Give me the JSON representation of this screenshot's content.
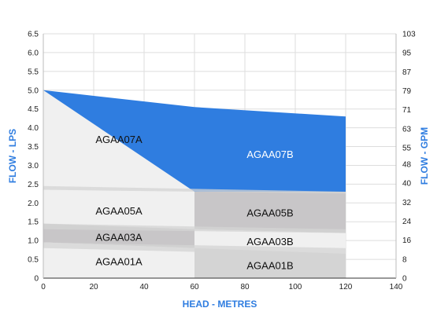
{
  "chart_data": {
    "type": "area",
    "xlabel": "HEAD - METRES",
    "ylabel": "FLOW - LPS",
    "y2label": "FLOW - GPM",
    "xlim": [
      0,
      140
    ],
    "ylim": [
      0,
      6.5
    ],
    "y2lim": [
      0,
      103
    ],
    "x_ticks": [
      0,
      20,
      40,
      60,
      80,
      100,
      120,
      140
    ],
    "y_ticks": [
      0,
      0.5,
      1.0,
      1.5,
      2.0,
      2.5,
      3.0,
      3.5,
      4.0,
      4.5,
      5.0,
      5.5,
      6.0,
      6.5
    ],
    "y_tick_labels": [
      "0",
      "0.5",
      "1.0",
      "1.5",
      "2.0",
      "2.5",
      "3.0",
      "3.5",
      "4.0",
      "4.5",
      "5.0",
      "5.5",
      "6.0",
      "6.5"
    ],
    "y2_ticks": [
      0,
      8,
      16,
      24,
      32,
      40,
      48,
      55,
      63,
      71,
      79,
      87,
      95,
      103
    ],
    "grid": true,
    "colors": {
      "highlight": "#2f7de0",
      "light_fill": "#f0f0f0",
      "mid_fill": "#d4d4d4",
      "dark_fill": "#c8c6c8",
      "grid": "#dddddd",
      "axis_title": "#2f7de0"
    },
    "series": [
      {
        "name": "AGAA07A",
        "x": [
          0,
          60
        ],
        "lower": [
          2.45,
          2.3
        ],
        "upper": [
          5.0,
          4.4
        ],
        "style": "light"
      },
      {
        "name": "AGAA07B",
        "x": [
          60,
          120
        ],
        "lower": [
          2.3,
          2.3
        ],
        "upper": [
          4.55,
          4.3
        ],
        "style": "highlight",
        "wedge_from_x": 0,
        "wedge_from_y": 5.0
      },
      {
        "name": "AGAA05A",
        "x": [
          0,
          60
        ],
        "lower": [
          1.45,
          1.3
        ],
        "upper": [
          2.45,
          2.3
        ],
        "style": "light"
      },
      {
        "name": "AGAA05B",
        "x": [
          60,
          120
        ],
        "lower": [
          1.3,
          1.2
        ],
        "upper": [
          2.3,
          2.3
        ],
        "style": "dark"
      },
      {
        "name": "AGAA03A",
        "x": [
          0,
          60
        ],
        "lower": [
          0.95,
          0.8
        ],
        "upper": [
          1.45,
          1.3
        ],
        "style": "dark"
      },
      {
        "name": "AGAA03B",
        "x": [
          60,
          120
        ],
        "lower": [
          0.8,
          0.65
        ],
        "upper": [
          1.3,
          1.2
        ],
        "style": "light"
      },
      {
        "name": "AGAA01A",
        "x": [
          0,
          60
        ],
        "lower": [
          0,
          0
        ],
        "upper": [
          0.95,
          0.8
        ],
        "style": "light"
      },
      {
        "name": "AGAA01B",
        "x": [
          60,
          120
        ],
        "lower": [
          0,
          0
        ],
        "upper": [
          0.8,
          0.65
        ],
        "style": "mid"
      }
    ],
    "band_overlay": [
      {
        "x": [
          0,
          120
        ],
        "lower": [
          2.35,
          2.25
        ],
        "upper": [
          2.45,
          2.3
        ],
        "style": "mid"
      },
      {
        "x": [
          0,
          120
        ],
        "lower": [
          1.3,
          1.2
        ],
        "upper": [
          1.45,
          1.3
        ],
        "style": "mid"
      },
      {
        "x": [
          0,
          120
        ],
        "lower": [
          0.8,
          0.6
        ],
        "upper": [
          0.95,
          0.8
        ],
        "style": "mid"
      }
    ],
    "labels": [
      {
        "text": "AGAA07A",
        "x": 30,
        "y": 3.7,
        "style": "dark"
      },
      {
        "text": "AGAA07B",
        "x": 90,
        "y": 3.3,
        "style": "light"
      },
      {
        "text": "AGAA05A",
        "x": 30,
        "y": 1.8,
        "style": "dark"
      },
      {
        "text": "AGAA05B",
        "x": 90,
        "y": 1.75,
        "style": "dark"
      },
      {
        "text": "AGAA03A",
        "x": 30,
        "y": 1.1,
        "style": "dark"
      },
      {
        "text": "AGAA03B",
        "x": 90,
        "y": 0.98,
        "style": "dark"
      },
      {
        "text": "AGAA01A",
        "x": 30,
        "y": 0.45,
        "style": "dark"
      },
      {
        "text": "AGAA01B",
        "x": 90,
        "y": 0.35,
        "style": "dark"
      }
    ]
  }
}
